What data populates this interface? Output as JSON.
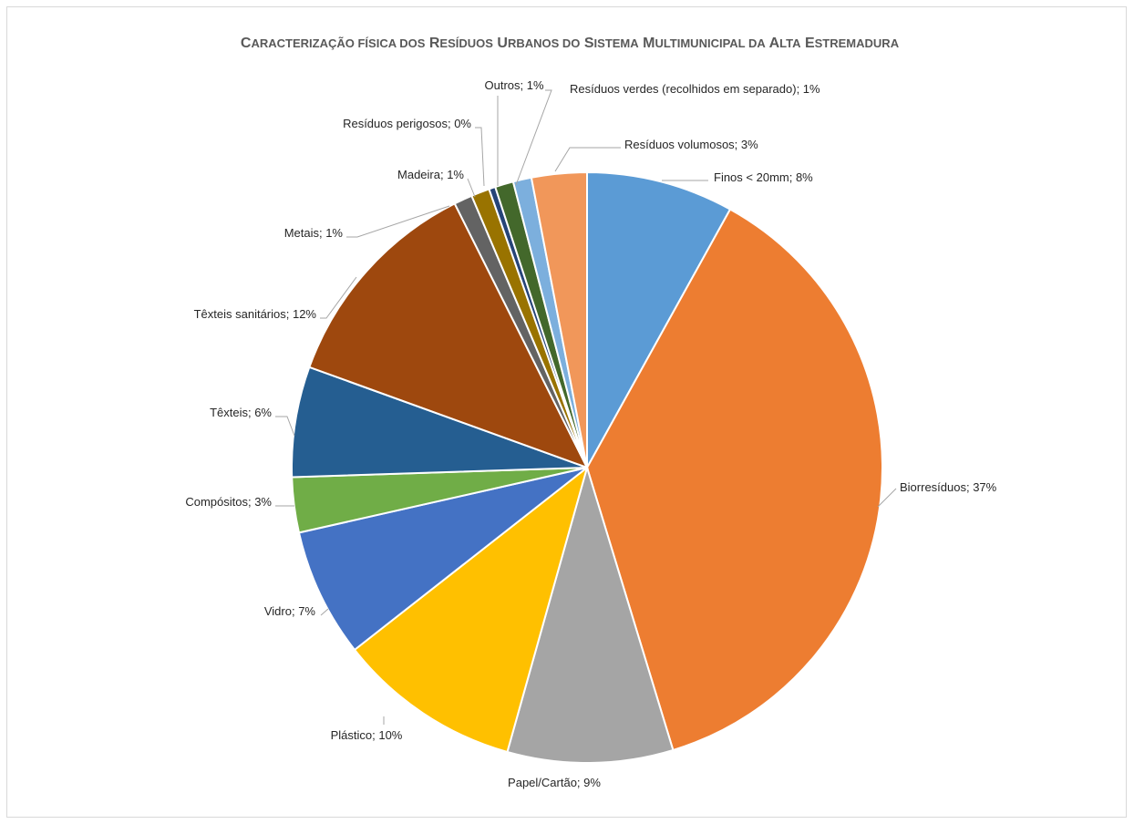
{
  "chart_data": {
    "type": "pie",
    "title": "Caracterização física dos Resíduos Urbanos do Sistema Multimunicipal da Alta Estremadura",
    "start_angle_deg": 0,
    "direction": "clockwise",
    "slices": [
      {
        "name": "Finos < 20mm",
        "value": 8,
        "label": "Finos < 20mm; 8%",
        "color": "#5B9BD5"
      },
      {
        "name": "Biorresíduos",
        "value": 37,
        "label": "Biorresíduos; 37%",
        "color": "#ED7D31"
      },
      {
        "name": "Papel/Cartão",
        "value": 9,
        "label": "Papel/Cartão; 9%",
        "color": "#A5A5A5"
      },
      {
        "name": "Plástico",
        "value": 10,
        "label": "Plástico; 10%",
        "color": "#FFC000"
      },
      {
        "name": "Vidro",
        "value": 7,
        "label": "Vidro; 7%",
        "color": "#4472C4"
      },
      {
        "name": "Compósitos",
        "value": 3,
        "label": "Compósitos; 3%",
        "color": "#70AD47"
      },
      {
        "name": "Têxteis",
        "value": 6,
        "label": "Têxteis; 6%",
        "color": "#255E91"
      },
      {
        "name": "Têxteis sanitários",
        "value": 12,
        "label": "Têxteis sanitários; 12%",
        "color": "#9E480E"
      },
      {
        "name": "Metais",
        "value": 1,
        "label": "Metais; 1%",
        "color": "#636363"
      },
      {
        "name": "Madeira",
        "value": 1,
        "label": "Madeira; 1%",
        "color": "#997300"
      },
      {
        "name": "Resíduos perigosos",
        "value": 0,
        "label": "Resíduos perigosos; 0%",
        "color": "#264478"
      },
      {
        "name": "Outros",
        "value": 1,
        "label": "Outros; 1%",
        "color": "#43682B"
      },
      {
        "name": "Resíduos verdes (recolhidos em separado)",
        "value": 1,
        "label": "Resíduos verdes (recolhidos em separado); 1%",
        "color": "#7CAFDD"
      },
      {
        "name": "Resíduos volumosos",
        "value": 3,
        "label": "Resíduos volumosos; 3%",
        "color": "#F1975A"
      }
    ]
  }
}
